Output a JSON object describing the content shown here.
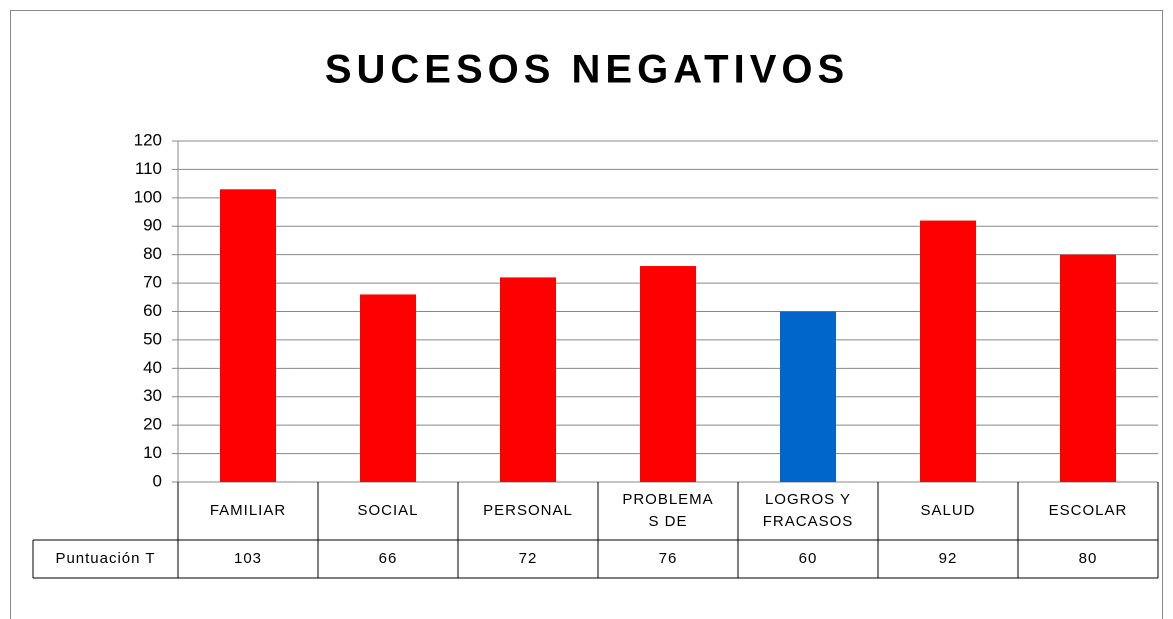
{
  "chart_data": {
    "type": "bar",
    "title": "SUCESOS NEGATIVOS",
    "categories": [
      "FAMILIAR",
      "SOCIAL",
      "PERSONAL",
      "PROBLEMAS DE",
      "LOGROS Y FRACASOS",
      "SALUD",
      "ESCOLAR"
    ],
    "series": [
      {
        "name": "Puntuación T",
        "values": [
          103,
          66,
          72,
          76,
          60,
          92,
          80
        ],
        "colors": [
          "#ff0000",
          "#ff0000",
          "#ff0000",
          "#ff0000",
          "#0066cc",
          "#ff0000",
          "#ff0000"
        ]
      }
    ],
    "ylim": [
      0,
      120
    ],
    "yticks": [
      0,
      10,
      20,
      30,
      40,
      50,
      60,
      70,
      80,
      90,
      100,
      110,
      120
    ],
    "grid": true
  }
}
